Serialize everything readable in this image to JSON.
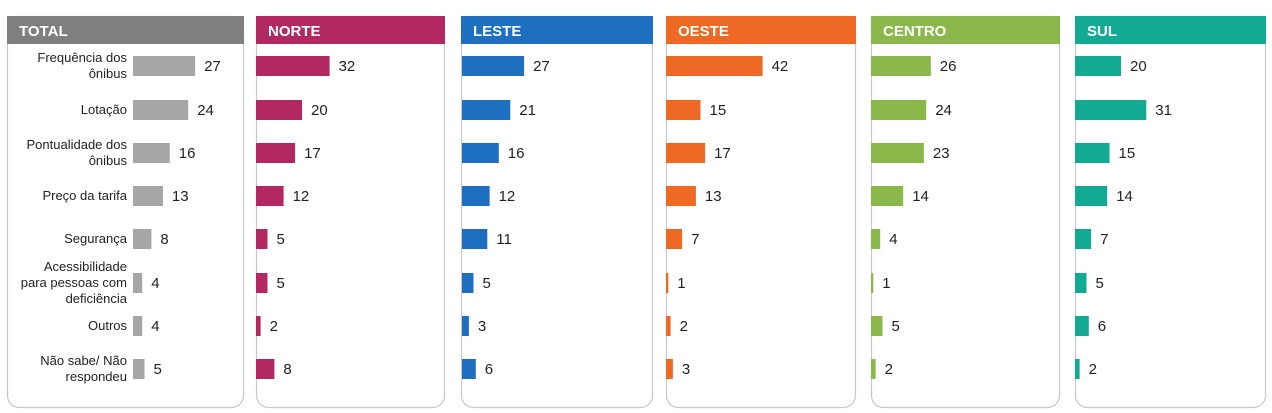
{
  "chart_data": {
    "type": "bar",
    "orientation": "horizontal",
    "categories": [
      [
        "Frequência dos",
        "ônibus"
      ],
      [
        "Lotação"
      ],
      [
        "Pontualidade dos",
        "ônibus"
      ],
      [
        "Preço da tarifa"
      ],
      [
        "Segurança"
      ],
      [
        "Acessibilidade",
        "para pessoas com",
        "deficiência"
      ],
      [
        "Outros"
      ],
      [
        "Não sabe/ Não",
        "respondeu"
      ]
    ],
    "xlim": [
      0,
      42
    ],
    "series": [
      {
        "name": "TOTAL",
        "color": "#a6a6a6",
        "title_bg": "#7f7f7f",
        "values": [
          27,
          24,
          16,
          13,
          8,
          4,
          4,
          5
        ]
      },
      {
        "name": "NORTE",
        "color": "#b22860",
        "title_bg": "#b22860",
        "values": [
          32,
          20,
          17,
          12,
          5,
          5,
          2,
          8
        ]
      },
      {
        "name": "LESTE",
        "color": "#1f6fc1",
        "title_bg": "#1f6fc1",
        "values": [
          27,
          21,
          16,
          12,
          11,
          5,
          3,
          6
        ]
      },
      {
        "name": "OESTE",
        "color": "#ee6a24",
        "title_bg": "#ee6a24",
        "values": [
          42,
          15,
          17,
          13,
          7,
          1,
          2,
          3
        ]
      },
      {
        "name": "CENTRO",
        "color": "#8bb84a",
        "title_bg": "#8bb84a",
        "values": [
          26,
          24,
          23,
          14,
          4,
          1,
          5,
          2
        ]
      },
      {
        "name": "SUL",
        "color": "#13aa93",
        "title_bg": "#13aa93",
        "values": [
          20,
          31,
          15,
          14,
          7,
          5,
          6,
          2
        ]
      }
    ]
  }
}
